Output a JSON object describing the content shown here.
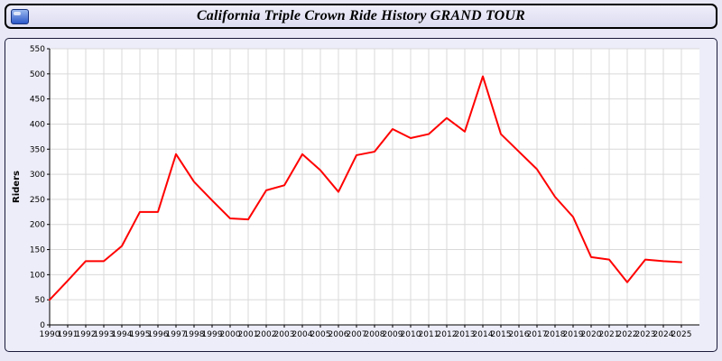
{
  "header": {
    "title": "California Triple Crown Ride History GRAND TOUR"
  },
  "colors": {
    "line": "#ff0000",
    "grid": "#d9d9d9",
    "plot_bg": "#ffffff",
    "page_bg": "#e8e8f6",
    "axis": "#000000",
    "text": "#000000"
  },
  "chart_data": {
    "type": "line",
    "title": "California Triple Crown Ride History GRAND TOUR",
    "xlabel": "",
    "ylabel": "Riders",
    "ylim": [
      0,
      550
    ],
    "ytick_step": 50,
    "grid": true,
    "legend_position": "none",
    "x": [
      1990,
      1991,
      1992,
      1993,
      1994,
      1995,
      1996,
      1997,
      1998,
      1999,
      2000,
      2001,
      2002,
      2003,
      2004,
      2005,
      2006,
      2007,
      2008,
      2009,
      2010,
      2011,
      2012,
      2013,
      2014,
      2015,
      2016,
      2017,
      2018,
      2019,
      2020,
      2021,
      2022,
      2023,
      2024,
      2025
    ],
    "series": [
      {
        "name": "Riders",
        "color": "#ff0000",
        "values": [
          50,
          88,
          127,
          127,
          157,
          225,
          225,
          340,
          285,
          248,
          212,
          210,
          268,
          278,
          340,
          308,
          265,
          338,
          345,
          390,
          372,
          380,
          412,
          385,
          495,
          380,
          345,
          310,
          255,
          215,
          135,
          130,
          85,
          130,
          127,
          125
        ]
      }
    ]
  }
}
